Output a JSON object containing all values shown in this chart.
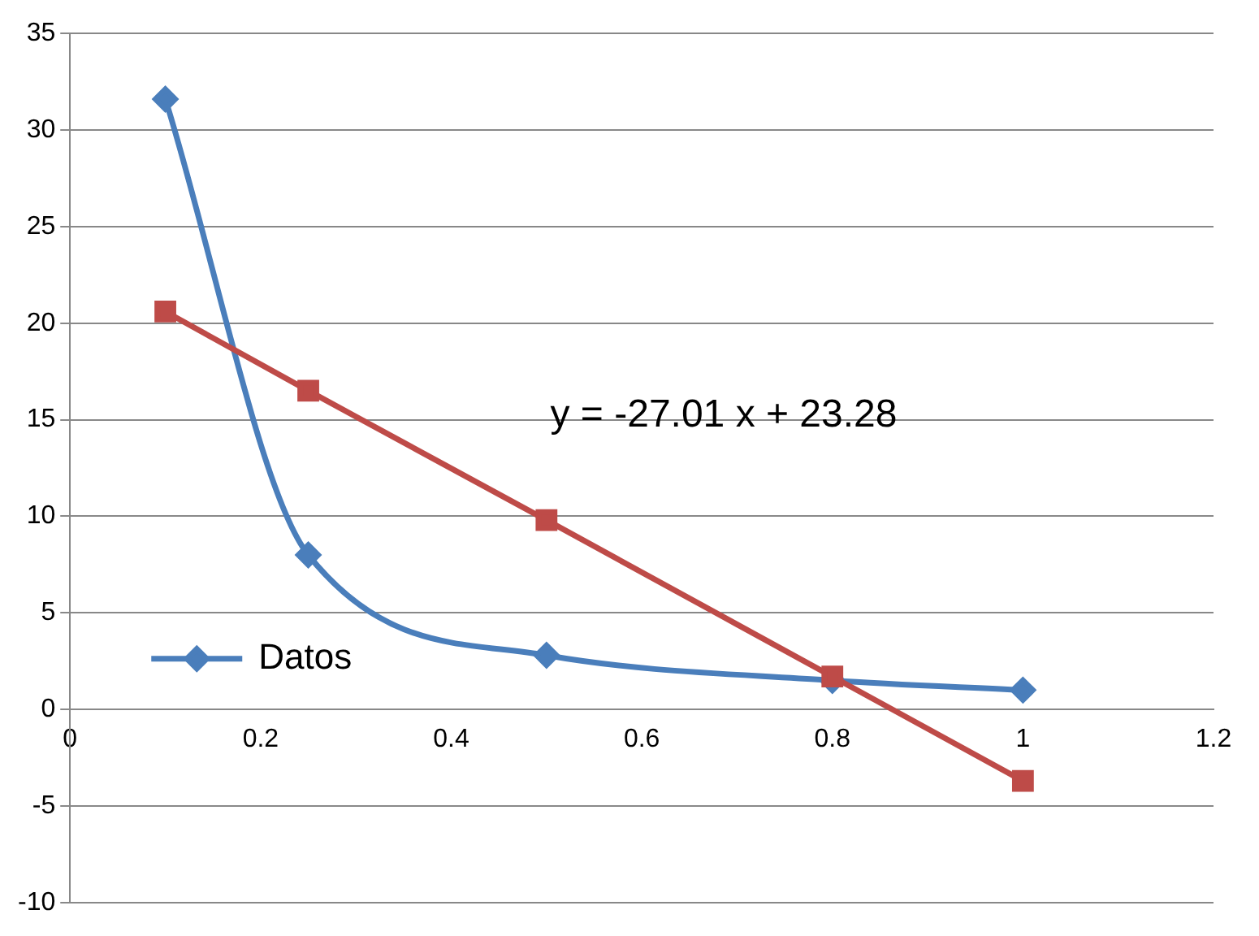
{
  "chart_data": {
    "type": "line",
    "series": [
      {
        "name": "Datos",
        "color": "#4a7ebb",
        "x": [
          0.1,
          0.25,
          0.5,
          0.8,
          1
        ],
        "values": [
          31.6,
          8.0,
          2.8,
          1.5,
          1.0
        ],
        "marker": "diamond"
      },
      {
        "type": "line",
        "color": "#be4b48",
        "x": [
          0.1,
          0.25,
          0.5,
          0.8,
          1
        ],
        "values": [
          20.6,
          16.5,
          9.8,
          1.7,
          -3.7
        ],
        "marker": "square"
      }
    ],
    "xlim": [
      0,
      1.2
    ],
    "xticks": [
      0,
      0.2,
      0.4,
      0.6,
      0.8,
      1,
      1.2
    ],
    "ylim": [
      -10,
      35
    ],
    "yticks": [
      -10,
      -5,
      0,
      5,
      10,
      15,
      20,
      25,
      30,
      35
    ],
    "grid": "y",
    "legend": "bottom left",
    "annotations": [
      "y = -27.01 x + 23.28"
    ]
  }
}
